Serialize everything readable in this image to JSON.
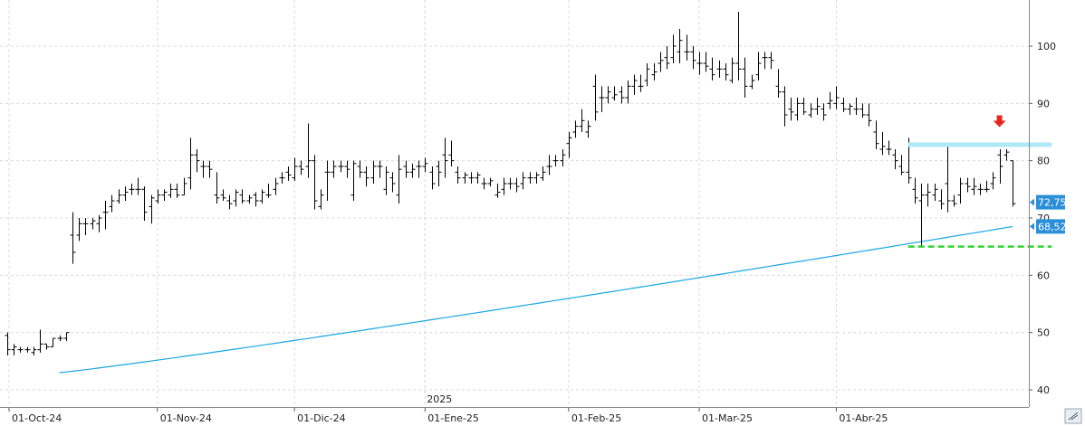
{
  "chart_data": {
    "type": "bar",
    "subtype": "ohlc-price-chart",
    "y_ticks": [
      40,
      50,
      60,
      70,
      80,
      90,
      100
    ],
    "ylim": [
      36,
      108
    ],
    "x_labels": [
      {
        "label": "01-Oct-24",
        "index": 0
      },
      {
        "label": "01-Nov-24",
        "index": 23
      },
      {
        "label": "01-Dic-24",
        "index": 44
      },
      {
        "label": "2025",
        "index": 64,
        "year_marker": true
      },
      {
        "label": "01-Ene-25",
        "index": 64
      },
      {
        "label": "01-Feb-25",
        "index": 86
      },
      {
        "label": "01-Mar-25",
        "index": 106
      },
      {
        "label": "01-Abr-25",
        "index": 127
      }
    ],
    "bars": [
      [
        49.5,
        50,
        46,
        47
      ],
      [
        47,
        48,
        46,
        47.5
      ],
      [
        47,
        47.5,
        46.5,
        47
      ],
      [
        47,
        47.5,
        46.5,
        47
      ],
      [
        46.5,
        47.5,
        46,
        47
      ],
      [
        47,
        50.5,
        46.5,
        48
      ],
      [
        48,
        48,
        47,
        47.5
      ],
      [
        47.5,
        49,
        47.5,
        49
      ],
      [
        49,
        49.5,
        48.5,
        49
      ],
      [
        49,
        50,
        48.5,
        50
      ],
      [
        67,
        71,
        62,
        64
      ],
      [
        67,
        70,
        66,
        69
      ],
      [
        69,
        70,
        67,
        69
      ],
      [
        69,
        70,
        68,
        69.5
      ],
      [
        69,
        70.5,
        67.5,
        70
      ],
      [
        71,
        73,
        68,
        71
      ],
      [
        72,
        74,
        71,
        73
      ],
      [
        73,
        75,
        72.5,
        74
      ],
      [
        74,
        75.5,
        73,
        74.5
      ],
      [
        75,
        76,
        74,
        75
      ],
      [
        75,
        77,
        74,
        75
      ],
      [
        75,
        75.5,
        69.5,
        71
      ],
      [
        72,
        74,
        69,
        73.5
      ],
      [
        73,
        75,
        72.5,
        74
      ],
      [
        74,
        75,
        73,
        74.5
      ],
      [
        74,
        76,
        73.5,
        75
      ],
      [
        75,
        76,
        73.5,
        74
      ],
      [
        74,
        77,
        74,
        76
      ],
      [
        77,
        84,
        75,
        81
      ],
      [
        81,
        82,
        78,
        80
      ],
      [
        79,
        80,
        77,
        79
      ],
      [
        79,
        80,
        77,
        78.5
      ],
      [
        74,
        78,
        72.5,
        73.5
      ],
      [
        74,
        75,
        73,
        73.5
      ],
      [
        73,
        74,
        71.5,
        72.5
      ],
      [
        73,
        75,
        72,
        74.5
      ],
      [
        74,
        75,
        72.5,
        73
      ],
      [
        73,
        74,
        72.5,
        73.5
      ],
      [
        74,
        74.5,
        72,
        73
      ],
      [
        73,
        75,
        72.5,
        74.5
      ],
      [
        74,
        76,
        73.5,
        74
      ],
      [
        75,
        77,
        74,
        76
      ],
      [
        77,
        78,
        76,
        77
      ],
      [
        78,
        79,
        76.5,
        77.5
      ],
      [
        77,
        80.5,
        76.5,
        79
      ],
      [
        79,
        80,
        77.5,
        78.5
      ],
      [
        79,
        86.5,
        77,
        80
      ],
      [
        80,
        81,
        71.5,
        73
      ],
      [
        72,
        75,
        71.5,
        74
      ],
      [
        78,
        80,
        73,
        78
      ],
      [
        78,
        80,
        77,
        79
      ],
      [
        79,
        80,
        78,
        79
      ],
      [
        79,
        80,
        77,
        78.5
      ],
      [
        74,
        80,
        73,
        79.5
      ],
      [
        79,
        80,
        77,
        78
      ],
      [
        78,
        79,
        75.5,
        77
      ],
      [
        77,
        80,
        76,
        79
      ],
      [
        79,
        80,
        77,
        79
      ],
      [
        75,
        79,
        74,
        78
      ],
      [
        77,
        78,
        74.5,
        76
      ],
      [
        74,
        81,
        72.5,
        78.5
      ],
      [
        79,
        80,
        77,
        78
      ],
      [
        78,
        79.5,
        77,
        78.5
      ],
      [
        79,
        80,
        77,
        79
      ],
      [
        79,
        80.5,
        78,
        79.5
      ],
      [
        78,
        79,
        75,
        76
      ],
      [
        79,
        80,
        75.5,
        78
      ],
      [
        81,
        84,
        77,
        80
      ],
      [
        81,
        83.5,
        79,
        80
      ],
      [
        78,
        79,
        76,
        77
      ],
      [
        77,
        78,
        76,
        77.5
      ],
      [
        77,
        78,
        76,
        77
      ],
      [
        77,
        78,
        76,
        77.5
      ],
      [
        76,
        77,
        75,
        76
      ],
      [
        76,
        77,
        75.5,
        76.5
      ],
      [
        74,
        76,
        73.5,
        74.5
      ],
      [
        75,
        77,
        74,
        76
      ],
      [
        76,
        77,
        75,
        76
      ],
      [
        76,
        77,
        74.5,
        75.5
      ],
      [
        76,
        78,
        75,
        77
      ],
      [
        77,
        78,
        76,
        77
      ],
      [
        77,
        78,
        76,
        77.5
      ],
      [
        77,
        79,
        76.5,
        78
      ],
      [
        79,
        81,
        77.5,
        79
      ],
      [
        80,
        81,
        79,
        80
      ],
      [
        80,
        82,
        79,
        81
      ],
      [
        83,
        85,
        80.5,
        84
      ],
      [
        85,
        87,
        84,
        86
      ],
      [
        86,
        89,
        85,
        87
      ],
      [
        85,
        87,
        84,
        86
      ],
      [
        93,
        95,
        87,
        88.5
      ],
      [
        91,
        93,
        88.5,
        91
      ],
      [
        91,
        93,
        90,
        92
      ],
      [
        91,
        93,
        90.5,
        91.5
      ],
      [
        92,
        93,
        90,
        91
      ],
      [
        91,
        94,
        90,
        93
      ],
      [
        93,
        95,
        91.5,
        94
      ],
      [
        93,
        95,
        92,
        93
      ],
      [
        94,
        97,
        93,
        96
      ],
      [
        95,
        97,
        94,
        95.5
      ],
      [
        97,
        99,
        95.5,
        97.5
      ],
      [
        98,
        100,
        96,
        97
      ],
      [
        98,
        102,
        97,
        100
      ],
      [
        99,
        103,
        97,
        101
      ],
      [
        99,
        102,
        97.5,
        99
      ],
      [
        99,
        100,
        96,
        97.5
      ],
      [
        97,
        99,
        95,
        97
      ],
      [
        97,
        99,
        95.5,
        96.5
      ],
      [
        96,
        98,
        94,
        95
      ],
      [
        96,
        97.5,
        94.5,
        96
      ],
      [
        96,
        97,
        94,
        95
      ],
      [
        94,
        98,
        93.5,
        97
      ],
      [
        97,
        106,
        94,
        96
      ],
      [
        96,
        98,
        91,
        93
      ],
      [
        93,
        95,
        92.5,
        94
      ],
      [
        95,
        99,
        94,
        97
      ],
      [
        98,
        99,
        96,
        98
      ],
      [
        98,
        99,
        96,
        97.5
      ],
      [
        93,
        96,
        91,
        92
      ],
      [
        92,
        93,
        86,
        88
      ],
      [
        89,
        91,
        87,
        88.5
      ],
      [
        88,
        91,
        87,
        90
      ],
      [
        90,
        91,
        88,
        88.5
      ],
      [
        88,
        90,
        87.5,
        89
      ],
      [
        89,
        91,
        88,
        89.5
      ],
      [
        89,
        90,
        87,
        88
      ],
      [
        90,
        92,
        89,
        90.5
      ],
      [
        90,
        93,
        89,
        91
      ],
      [
        90,
        91,
        88.5,
        89
      ],
      [
        89,
        90,
        88,
        89.5
      ],
      [
        89,
        91,
        88,
        89
      ],
      [
        89,
        90,
        87.5,
        88
      ],
      [
        88,
        90,
        86,
        87
      ],
      [
        85,
        87,
        82,
        83
      ],
      [
        82,
        85,
        81,
        82.5
      ],
      [
        82,
        83.5,
        81,
        82
      ],
      [
        81,
        82,
        78.5,
        80
      ],
      [
        79,
        81,
        77.5,
        78
      ],
      [
        78,
        84,
        76,
        77
      ],
      [
        75,
        77,
        72.5,
        73.5
      ],
      [
        73,
        76,
        65,
        74
      ],
      [
        74,
        76,
        72,
        74.5
      ],
      [
        74,
        76,
        73,
        75
      ],
      [
        73,
        75,
        71.5,
        72.5
      ],
      [
        76,
        83,
        71,
        73
      ],
      [
        73,
        74,
        72,
        72.5
      ],
      [
        74,
        77,
        72.5,
        76
      ],
      [
        76,
        77,
        74.5,
        75.5
      ],
      [
        75,
        77,
        74,
        75.5
      ],
      [
        75,
        76,
        74,
        75
      ],
      [
        75,
        76.5,
        74.5,
        75
      ],
      [
        76,
        78,
        75,
        77
      ],
      [
        81,
        82,
        76,
        79
      ],
      [
        81,
        82,
        80,
        81.5
      ],
      [
        80,
        80,
        72,
        72.5
      ]
    ],
    "moving_average": {
      "start": 43,
      "end": 68.5,
      "start_index": 8
    },
    "current_price": "72,75",
    "moving_average_label": "68,52",
    "resistance_level": 82.8,
    "support_level": 65,
    "resistance_range": [
      138,
      160
    ],
    "support_range": [
      138,
      160
    ],
    "down_arrow_index": 152,
    "down_arrow_value": 86.5,
    "colors": {
      "bars": "#000000",
      "moving_average": "#1aa7e0",
      "price_box": "#2a8fd8",
      "ma_box": "#2a8fd8",
      "resistance": "#aee9f5",
      "support": "#2fd42f",
      "arrow": "#e8251e",
      "grid": "#d9d9d9"
    }
  }
}
